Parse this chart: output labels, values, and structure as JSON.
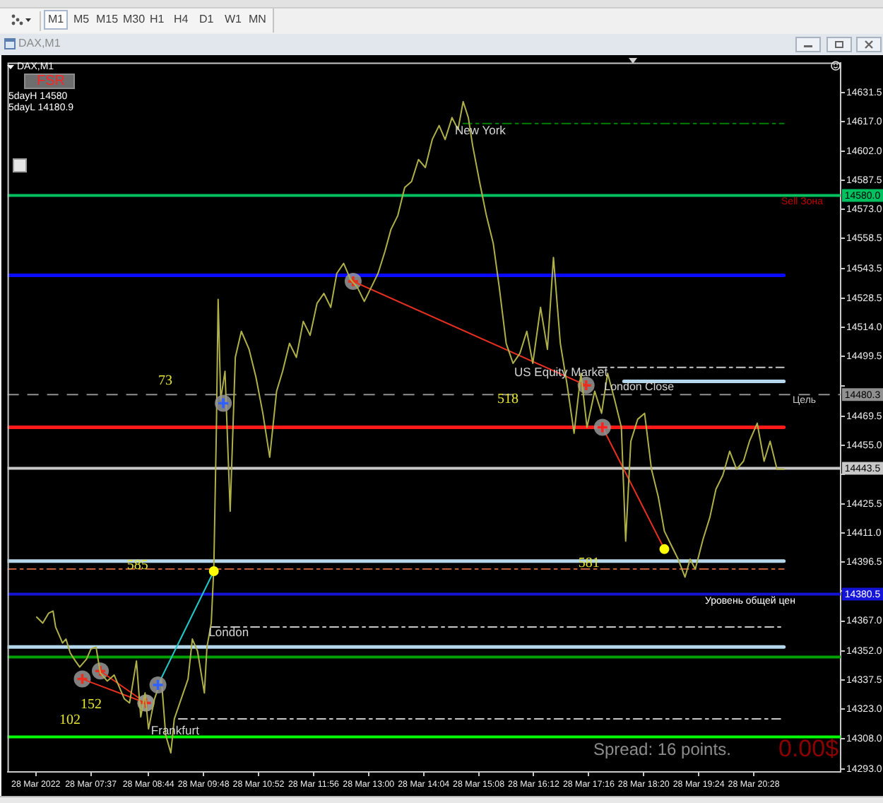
{
  "chart_data": {
    "type": "line",
    "title": "DAX,M1",
    "x": [
      "2022-03-28T06:34",
      "2022-03-28T06:41",
      "2022-03-28T06:48",
      "2022-03-28T06:53",
      "2022-03-28T06:56",
      "2022-03-28T07:01",
      "2022-03-28T07:04",
      "2022-03-28T07:08",
      "2022-03-28T07:13",
      "2022-03-28T07:19",
      "2022-03-28T07:24",
      "2022-03-28T07:32",
      "2022-03-28T07:37",
      "2022-03-28T07:43",
      "2022-03-28T07:48",
      "2022-03-28T07:56",
      "2022-03-28T08:04",
      "2022-03-28T08:10",
      "2022-03-28T08:16",
      "2022-03-28T08:22",
      "2022-03-28T08:30",
      "2022-03-28T08:35",
      "2022-03-28T08:40",
      "2022-03-28T08:44",
      "2022-03-28T08:51",
      "2022-03-28T08:59",
      "2022-03-28T09:04",
      "2022-03-28T09:10",
      "2022-03-28T09:14",
      "2022-03-28T09:22",
      "2022-03-28T09:30",
      "2022-03-28T09:35",
      "2022-03-28T09:41",
      "2022-03-28T09:49",
      "2022-03-28T09:52",
      "2022-03-28T09:57",
      "2022-03-28T10:00",
      "2022-03-28T10:03",
      "2022-03-28T10:05",
      "2022-03-28T10:08",
      "2022-03-28T10:13",
      "2022-03-28T10:19",
      "2022-03-28T10:25",
      "2022-03-28T10:32",
      "2022-03-28T10:41",
      "2022-03-28T10:49",
      "2022-03-28T10:57",
      "2022-03-28T11:05",
      "2022-03-28T11:13",
      "2022-03-28T11:20",
      "2022-03-28T11:28",
      "2022-03-28T11:36",
      "2022-03-28T11:44",
      "2022-03-28T11:52",
      "2022-03-28T12:00",
      "2022-03-28T12:08",
      "2022-03-28T12:16",
      "2022-03-28T12:23",
      "2022-03-28T12:31",
      "2022-03-28T12:39",
      "2022-03-28T12:47",
      "2022-03-28T12:55",
      "2022-03-28T13:03",
      "2022-03-28T13:11",
      "2022-03-28T13:19",
      "2022-03-28T13:26",
      "2022-03-28T13:34",
      "2022-03-28T13:42",
      "2022-03-28T13:50",
      "2022-03-28T13:58",
      "2022-03-28T14:06",
      "2022-03-28T14:14",
      "2022-03-28T14:22",
      "2022-03-28T14:29",
      "2022-03-28T14:37",
      "2022-03-28T14:44",
      "2022-03-28T14:50",
      "2022-03-28T14:56",
      "2022-03-28T15:01",
      "2022-03-28T15:09",
      "2022-03-28T15:17",
      "2022-03-28T15:25",
      "2022-03-28T15:32",
      "2022-03-28T15:40",
      "2022-03-28T15:48",
      "2022-03-28T15:56",
      "2022-03-28T16:04",
      "2022-03-28T16:11",
      "2022-03-28T16:20",
      "2022-03-28T16:28",
      "2022-03-28T16:35",
      "2022-03-28T16:43",
      "2022-03-28T16:51",
      "2022-03-28T16:59",
      "2022-03-28T17:07",
      "2022-03-28T17:14",
      "2022-03-28T17:23",
      "2022-03-28T17:31",
      "2022-03-28T17:38",
      "2022-03-28T17:46",
      "2022-03-28T17:54",
      "2022-03-28T17:59",
      "2022-03-28T18:05",
      "2022-03-28T18:13",
      "2022-03-28T18:21",
      "2022-03-28T18:29",
      "2022-03-28T18:37",
      "2022-03-28T18:44",
      "2022-03-28T18:52",
      "2022-03-28T19:00",
      "2022-03-28T19:08",
      "2022-03-28T19:14",
      "2022-03-28T19:20",
      "2022-03-28T19:29",
      "2022-03-28T19:37",
      "2022-03-28T19:44",
      "2022-03-28T19:52",
      "2022-03-28T20:00",
      "2022-03-28T20:08",
      "2022-03-28T20:16",
      "2022-03-28T20:23",
      "2022-03-28T20:32",
      "2022-03-28T20:40",
      "2022-03-28T20:47",
      "2022-03-28T20:55",
      "2022-03-28T21:03"
    ],
    "series": [
      {
        "color": "#b0b048",
        "values": [
          14369,
          14366,
          14371,
          14372,
          14364,
          14359,
          14356,
          14358,
          14351,
          14347,
          14344,
          14348,
          14353,
          14354,
          14341,
          14337,
          14340,
          14334,
          14328,
          14326,
          14347,
          14319,
          14331,
          14313,
          14328,
          14338,
          14310,
          14301,
          14318,
          14328,
          14338,
          14358,
          14352,
          14331,
          14354,
          14366,
          14394,
          14464,
          14528,
          14478,
          14492,
          14422,
          14499,
          14512,
          14503,
          14489,
          14471,
          14449,
          14482,
          14492,
          14506,
          14499,
          14517,
          14510,
          14526,
          14531,
          14524,
          14541,
          14546,
          14538,
          14534,
          14527,
          14534,
          14541,
          14552,
          14563,
          14570,
          14584,
          14587,
          14598,
          14594,
          14608,
          14615,
          14608,
          14619,
          14613,
          14627,
          14619,
          14605,
          14587,
          14570,
          14556,
          14534,
          14506,
          14496,
          14501,
          14512,
          14496,
          14524,
          14503,
          14549,
          14506,
          14485,
          14461,
          14491,
          14464,
          14482,
          14471,
          14491,
          14478,
          14464,
          14407,
          14457,
          14468,
          14471,
          14443,
          14429,
          14412,
          14405,
          14398,
          14389,
          14398,
          14393,
          14408,
          14419,
          14433,
          14440,
          14452,
          14443,
          14447,
          14457,
          14466,
          14447,
          14457,
          14443,
          14443
        ]
      },
      {
        "type": "line",
        "color": "#0a0aff",
        "x": [
          "2022-03-28T06:00",
          "2022-03-28T21:03"
        ],
        "values": [
          14540,
          14540
        ]
      },
      {
        "type": "line",
        "color": "#ff1a1a",
        "x": [
          "2022-03-28T06:00",
          "2022-03-28T21:03"
        ],
        "values": [
          14464,
          14464
        ]
      },
      {
        "type": "line",
        "color": "#b4d7ec",
        "x": [
          "2022-03-28T06:00",
          "2022-03-28T21:03"
        ],
        "values": [
          14397,
          14397
        ]
      },
      {
        "type": "line",
        "color": "#c0603a",
        "line_style": "dashed",
        "x": [
          "2022-03-28T06:00",
          "2022-03-28T21:03"
        ],
        "values": [
          14393,
          14393
        ]
      },
      {
        "type": "line",
        "color": "#b4d7ec",
        "x": [
          "2022-03-28T06:00",
          "2022-03-28T21:03"
        ],
        "values": [
          14354,
          14354
        ]
      },
      {
        "type": "line",
        "color": "#b4d7ec",
        "x": [
          "2022-03-28T17:57",
          "2022-03-28T21:03"
        ],
        "values": [
          14487,
          14487
        ]
      },
      {
        "type": "line",
        "color": "#c8c8c8",
        "line_style": "dashed",
        "x": [
          "2022-03-28T17:27",
          "2022-03-28T21:03"
        ],
        "values": [
          14494,
          14494
        ]
      },
      {
        "type": "line",
        "color": "#c8c8c8",
        "line_style": "dashed",
        "x": [
          "2022-03-28T09:57",
          "2022-03-28T21:03"
        ],
        "values": [
          14364,
          14364
        ]
      },
      {
        "type": "line",
        "color": "#c8c8c8",
        "line_style": "dashed",
        "x": [
          "2022-03-28T09:19",
          "2022-03-28T21:03"
        ],
        "values": [
          14318,
          14318
        ]
      },
      {
        "type": "line",
        "color": "#008000",
        "line_style": "dashed",
        "x": [
          "2022-03-28T14:50",
          "2022-03-28T21:03"
        ],
        "values": [
          14616,
          14616
        ]
      },
      {
        "type": "line",
        "color": "#e83020",
        "marker": "cross",
        "x": [
          "2022-03-28T07:27",
          "2022-03-28T08:41"
        ],
        "values": [
          14338,
          14326
        ]
      },
      {
        "type": "line",
        "color": "#e83020",
        "marker": "cross",
        "x": [
          "2022-03-28T07:48",
          "2022-03-28T08:41"
        ],
        "values": [
          14342,
          14326
        ]
      },
      {
        "type": "line",
        "color": "#e83020",
        "marker": "cross",
        "x": [
          "2022-03-28T12:42",
          "2022-03-28T17:13"
        ],
        "values": [
          14537,
          14485
        ]
      },
      {
        "type": "line",
        "color": "#e83020",
        "x": [
          "2022-03-28T17:32",
          "2022-03-28T18:44"
        ],
        "values": [
          14464,
          14403
        ]
      },
      {
        "type": "line",
        "color": "#20c8c8",
        "x": [
          "2022-03-28T08:55",
          "2022-03-28T10:00"
        ],
        "values": [
          14335,
          14392
        ]
      },
      {
        "type": "scatter",
        "color": "#ff2020",
        "marker": "cross",
        "x": [
          "2022-03-28T17:32"
        ],
        "values": [
          14464
        ]
      },
      {
        "type": "scatter",
        "color": "#3060ff",
        "marker": "cross",
        "x": [
          "2022-03-28T08:55",
          "2022-03-28T10:11"
        ],
        "values": [
          14335,
          14476
        ]
      },
      {
        "type": "scatter",
        "color": "#ffff00",
        "marker": "circle",
        "x": [
          "2022-03-28T10:00",
          "2022-03-28T18:44"
        ],
        "values": [
          14392,
          14403
        ]
      }
    ],
    "xlim": [
      "2022-03-28T06:00",
      "2022-03-28T22:09"
    ],
    "xticks": [
      {
        "value": "2022-03-28T06:33",
        "label": "28 Mar 2022"
      },
      {
        "value": "2022-03-28T07:37",
        "label": "28 Mar 07:37"
      },
      {
        "value": "2022-03-28T08:44",
        "label": "28 Mar 08:44"
      },
      {
        "value": "2022-03-28T09:48",
        "label": "28 Mar 09:48"
      },
      {
        "value": "2022-03-28T10:52",
        "label": "28 Mar 10:52"
      },
      {
        "value": "2022-03-28T11:56",
        "label": "28 Mar 11:56"
      },
      {
        "value": "2022-03-28T13:00",
        "label": "28 Mar 13:00"
      },
      {
        "value": "2022-03-28T14:04",
        "label": "28 Mar 14:04"
      },
      {
        "value": "2022-03-28T15:08",
        "label": "28 Mar 15:08"
      },
      {
        "value": "2022-03-28T16:12",
        "label": "28 Mar 16:12"
      },
      {
        "value": "2022-03-28T17:16",
        "label": "28 Mar 17:16"
      },
      {
        "value": "2022-03-28T18:20",
        "label": "28 Mar 18:20"
      },
      {
        "value": "2022-03-28T19:24",
        "label": "28 Mar 19:24"
      },
      {
        "value": "2022-03-28T20:28",
        "label": "28 Mar 20:28"
      }
    ],
    "ylim": [
      14291.5,
      14646.5
    ],
    "yticks": [
      14631.5,
      {
        "value": 14617,
        "label": "14617.0"
      },
      {
        "value": 14602,
        "label": "14602.0"
      },
      14587.5,
      {
        "value": 14573,
        "label": "14573.0"
      },
      14558.5,
      14543.5,
      14528.5,
      {
        "value": 14514,
        "label": "14514.0"
      },
      14499.5,
      {
        "value": 14484.5,
        "label": null
      },
      14469.5,
      {
        "value": 14455,
        "label": "14455.0"
      },
      {
        "value": 14440.5,
        "label": null
      },
      14425.5,
      {
        "value": 14411,
        "label": "14411.0"
      },
      14396.5,
      {
        "value": 14382,
        "label": null
      },
      {
        "value": 14367,
        "label": "14367.0"
      },
      {
        "value": 14352,
        "label": "14352.0"
      },
      14337.5,
      {
        "value": 14323,
        "label": "14323.0"
      },
      {
        "value": 14308,
        "label": "14308.0"
      },
      {
        "value": 14293,
        "label": "14293.0"
      }
    ],
    "ref_lines": [
      {
        "axis": "y",
        "value": 14580,
        "label": "14580.0",
        "color": "#00c060"
      },
      {
        "axis": "y",
        "value": 14480.3,
        "label": "14480.3",
        "color": "#909090",
        "line_style": "dashed"
      },
      {
        "axis": "y",
        "value": 14443.5,
        "label": "14443.5",
        "color": "#c8c8c8"
      },
      {
        "axis": "y",
        "value": 14380.5,
        "label": "14380.5",
        "color": "#1414d8"
      },
      {
        "axis": "y",
        "value": 14349,
        "color": "#00a000"
      },
      {
        "axis": "y",
        "value": 14309,
        "color": "#00ff00"
      }
    ],
    "annotations": [
      {
        "text": "London",
        "x": "2022-03-28T09:54",
        "y": 14361
      },
      {
        "text": "Frankfurt",
        "x": "2022-03-28T08:47",
        "y": 14312
      },
      {
        "text": "London Close",
        "x": "2022-03-28T17:34",
        "y": 14484
      },
      {
        "text": "Sell Зона",
        "x": "2022-03-28T21:00",
        "y": 14577
      },
      {
        "text": "585",
        "x": "2022-03-28T08:19",
        "y": 14395
      },
      {
        "text": "581",
        "x": "2022-03-28T17:04",
        "y": 14396
      },
      "New York",
      "US Equity Market",
      "Цель",
      "Уровень общей цен",
      "73",
      "152",
      "102",
      "518",
      "Spread: 16 points.",
      "0.00$",
      "5dayH 14580",
      "5dayL 14180.9",
      "FSR",
      "M1",
      "M5",
      "M15",
      "M30",
      "H1",
      "H4",
      "D1",
      "W1",
      "MN"
    ]
  }
}
